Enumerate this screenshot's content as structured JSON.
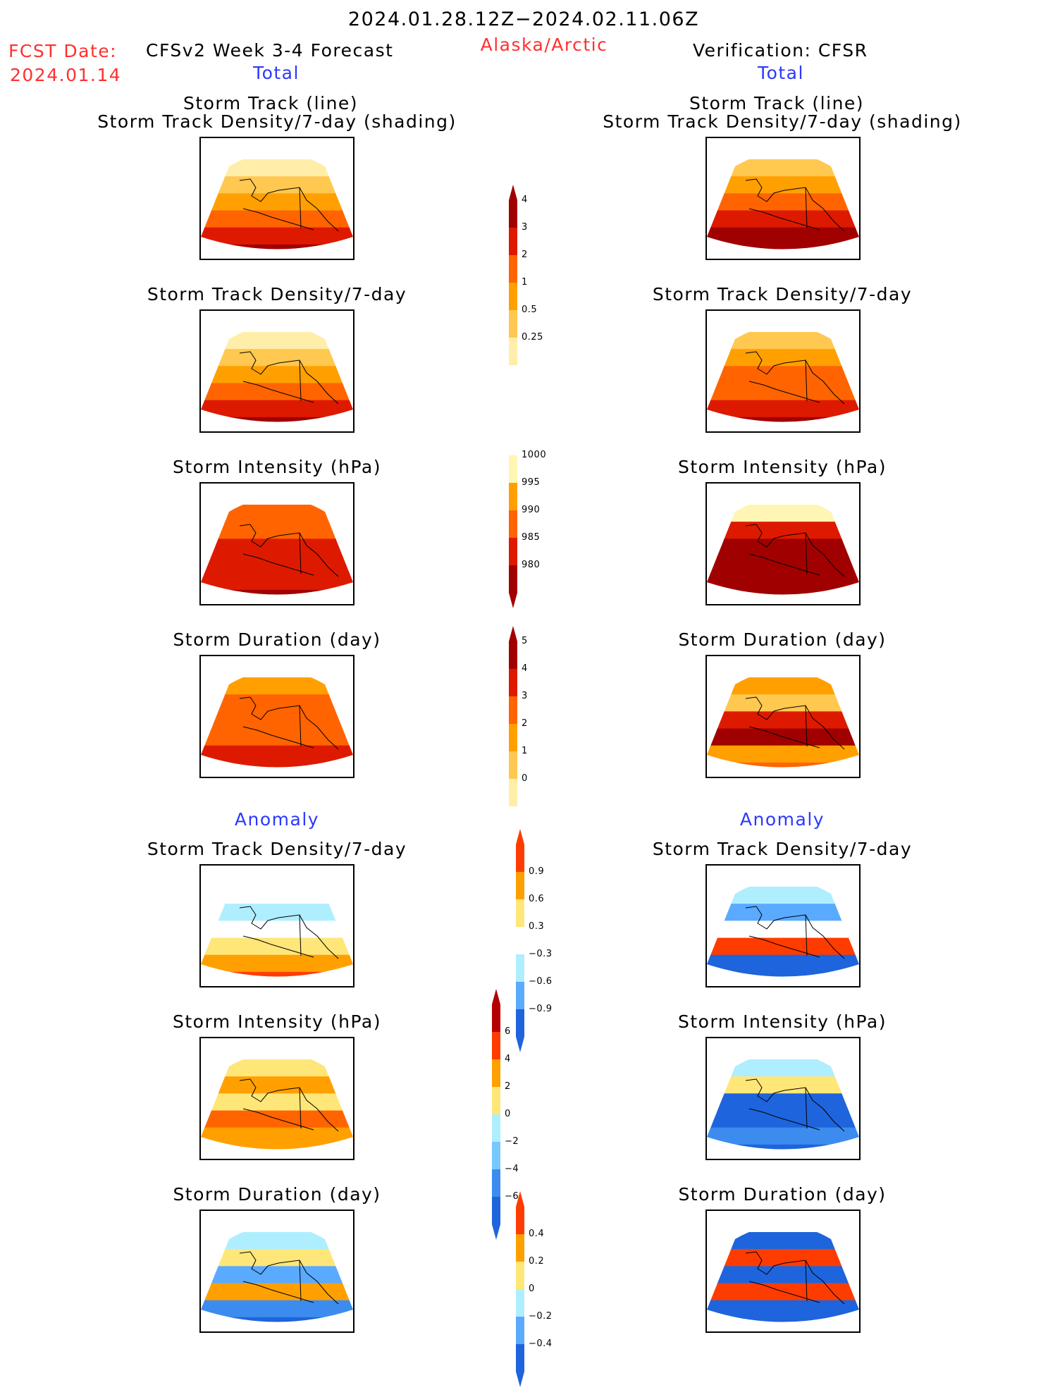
{
  "header": {
    "date_range": "2024.01.28.12Z−2024.02.11.06Z",
    "fcst_label": "FCST Date:",
    "fcst_date": "2024.01.14",
    "forecast_title": "CFSv2 Week 3-4 Forecast",
    "region": "Alaska/Arctic",
    "verification": "Verification: CFSR"
  },
  "sections": {
    "total": "Total",
    "anomaly": "Anomaly"
  },
  "panel_titles": {
    "track_line": "Storm Track (line)",
    "track_shading": "Storm Track Density/7-day (shading)",
    "density": "Storm Track Density/7-day",
    "intensity": "Storm Intensity (hPa)",
    "duration": "Storm Duration (day)"
  },
  "colorbars": {
    "density": {
      "labels": [
        "4",
        "3",
        "2",
        "1",
        "0.5",
        "0.25"
      ],
      "colors": [
        "#a10000",
        "#dd1a00",
        "#ff6400",
        "#ffa000",
        "#ffc850",
        "#ffeeaa"
      ]
    },
    "intensity": {
      "labels": [
        "1000",
        "995",
        "990",
        "985",
        "980"
      ],
      "colors": [
        "#fff5b4",
        "#ffa000",
        "#ff6400",
        "#dd1a00",
        "#a10000"
      ]
    },
    "duration": {
      "labels": [
        "5",
        "4",
        "3",
        "2",
        "1",
        "0"
      ],
      "colors": [
        "#a10000",
        "#dd1a00",
        "#ff6400",
        "#ffa000",
        "#ffc850",
        "#ffeeaa"
      ]
    },
    "anom_density": {
      "labels": [
        "0.9",
        "0.6",
        "0.3",
        "−0.3",
        "−0.6",
        "−0.9"
      ],
      "colors": [
        "#ff3c00",
        "#ffa000",
        "#ffe678",
        "#ffffff",
        "#afeeff",
        "#5aaaff",
        "#1e64dc"
      ]
    },
    "anom_intensity": {
      "labels": [
        "6",
        "4",
        "2",
        "0",
        "−2",
        "−4",
        "−6"
      ],
      "colors": [
        "#b40000",
        "#ff3c00",
        "#ffa000",
        "#ffe678",
        "#afeeff",
        "#78c8ff",
        "#3c8cf0",
        "#1e64dc"
      ]
    },
    "anom_duration": {
      "labels": [
        "0.4",
        "0.2",
        "0",
        "−0.2",
        "−0.4"
      ],
      "colors": [
        "#ff3c00",
        "#ffa000",
        "#ffe678",
        "#afeeff",
        "#5aaaff",
        "#1e64dc"
      ]
    }
  }
}
